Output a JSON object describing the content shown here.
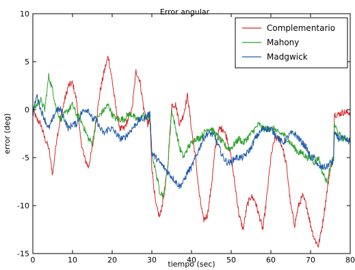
{
  "chart_data": {
    "type": "line",
    "title": "Error angular",
    "xlabel": "tiempo (sec)",
    "ylabel": "error (deg)",
    "xlim": [
      0,
      80
    ],
    "ylim": [
      -15,
      10
    ],
    "xticks": [
      "0",
      "10",
      "20",
      "30",
      "40",
      "50",
      "60",
      "70",
      "80"
    ],
    "yticks": [
      "10",
      "5",
      "0",
      "-5",
      "-10",
      "-15"
    ],
    "grid": false,
    "legend_position": "top-right",
    "series": [
      {
        "name": "Complementario",
        "color": "#d62728",
        "x": [
          0,
          1,
          2,
          3,
          4,
          5,
          6,
          7,
          8,
          9,
          10,
          11,
          12,
          13,
          14,
          15,
          16,
          17,
          18,
          19,
          20,
          21,
          22,
          23,
          24,
          25,
          26,
          27,
          28,
          29,
          29.5,
          30,
          31,
          32,
          33,
          34,
          35,
          36,
          37,
          38,
          39,
          40,
          41,
          42,
          43,
          44,
          45,
          46,
          47,
          48,
          49,
          50,
          51,
          52,
          53,
          54,
          55,
          56,
          57,
          58,
          59,
          60,
          61,
          62,
          63,
          64,
          65,
          66,
          67,
          68,
          69,
          70,
          71,
          72,
          73,
          74,
          75,
          75.8,
          76,
          77,
          78,
          79,
          80
        ],
        "y": [
          0,
          -1,
          -1.5,
          -3,
          -4,
          -6.8,
          -3,
          -1,
          1,
          2.5,
          2.8,
          1,
          -3,
          -5,
          -6,
          -4,
          -1,
          2,
          4,
          5.6,
          3,
          0,
          -2,
          -2,
          -1,
          0,
          4,
          3,
          0,
          -1.5,
          -1,
          -6,
          -10,
          -11.2,
          -9,
          -6,
          0.5,
          0.5,
          -1.5,
          -0.5,
          1.5,
          -2,
          -5,
          -9,
          -11.5,
          -11,
          -8,
          -4,
          -2,
          -2,
          -3,
          -5,
          -8,
          -11,
          -12.5,
          -10,
          -9,
          -9.5,
          -11,
          -12.5,
          -9,
          -5,
          -3,
          -3,
          -4,
          -6,
          -10,
          -12,
          -10,
          -9,
          -10,
          -12,
          -13.5,
          -14.2,
          -12,
          -9,
          -6,
          -5,
          -0.5,
          -0.5,
          -0.3,
          -0.3,
          -0.3
        ]
      },
      {
        "name": "Mahony",
        "color": "#2ca02c",
        "x": [
          0,
          1,
          2,
          3,
          4,
          5,
          6,
          7,
          8,
          9,
          10,
          11,
          12,
          13,
          14,
          15,
          16,
          17,
          18,
          19,
          20,
          21,
          22,
          23,
          24,
          25,
          26,
          27,
          28,
          29,
          29.5,
          30,
          31,
          32,
          33,
          34,
          35,
          36,
          37,
          38,
          39,
          40,
          41,
          42,
          43,
          44,
          45,
          46,
          47,
          48,
          49,
          50,
          51,
          52,
          53,
          54,
          55,
          56,
          57,
          58,
          59,
          60,
          61,
          62,
          63,
          64,
          65,
          66,
          67,
          68,
          69,
          70,
          71,
          72,
          73,
          74,
          75,
          75.8,
          76,
          77,
          78,
          79,
          80
        ],
        "y": [
          0,
          0.5,
          1,
          0,
          3.5,
          2,
          0,
          -1,
          -0.5,
          0,
          0.5,
          -0.5,
          -1,
          -2,
          -3,
          -3.5,
          -1,
          -0.5,
          0,
          0.5,
          -0.5,
          -1,
          -1,
          -1,
          -0.5,
          -0.5,
          -1,
          -1,
          -0.5,
          -1,
          -0.5,
          -4.5,
          -6.5,
          -8.5,
          -9,
          -6,
          0,
          -2,
          -4,
          -5,
          -4,
          -3.5,
          -3,
          -3,
          -2.5,
          -2,
          -2,
          -2.5,
          -3,
          -3.5,
          -4,
          -4,
          -3.5,
          -3,
          -3.5,
          -3,
          -2.5,
          -2,
          -1.5,
          -2,
          -2,
          -2,
          -2,
          -2.5,
          -2.5,
          -3,
          -3.5,
          -4,
          -4.5,
          -4.5,
          -5,
          -5,
          -5.5,
          -5,
          -6.5,
          -7.5,
          -6,
          -5,
          -1.5,
          -2.5,
          -3,
          -3,
          -3.2
        ]
      },
      {
        "name": "Madgwick",
        "color": "#1f5bab",
        "x": [
          0,
          1,
          2,
          3,
          4,
          5,
          6,
          7,
          8,
          9,
          10,
          11,
          12,
          13,
          14,
          15,
          16,
          17,
          18,
          19,
          20,
          21,
          22,
          23,
          24,
          25,
          26,
          27,
          28,
          29,
          29.5,
          30,
          31,
          32,
          33,
          34,
          35,
          36,
          37,
          38,
          39,
          40,
          41,
          42,
          43,
          44,
          45,
          46,
          47,
          48,
          49,
          50,
          51,
          52,
          53,
          54,
          55,
          56,
          57,
          58,
          59,
          60,
          61,
          62,
          63,
          64,
          65,
          66,
          67,
          68,
          69,
          70,
          71,
          72,
          73,
          74,
          75,
          75.8,
          76,
          77,
          78,
          79,
          80
        ],
        "y": [
          -0.5,
          1.5,
          0,
          -1,
          -2,
          -1,
          0,
          0,
          -1,
          -2,
          -1.5,
          -1.5,
          -0.5,
          0,
          0,
          -1,
          -1,
          -2,
          -2.5,
          -2,
          -2,
          -2.5,
          -3,
          -3,
          -2.5,
          -2,
          -1.5,
          -1,
          -1,
          -0.5,
          -0.5,
          -4.5,
          -5,
          -5.5,
          -6,
          -6.5,
          -7,
          -7.5,
          -8,
          -7.5,
          -6.5,
          -6,
          -5,
          -4,
          -3,
          -2.5,
          -2.5,
          -3,
          -4,
          -5,
          -5.5,
          -5.5,
          -5,
          -5,
          -5,
          -4.5,
          -4,
          -3,
          -2.5,
          -2,
          -2,
          -2,
          -2.5,
          -3,
          -3.5,
          -3,
          -2.5,
          -2.5,
          -3,
          -3.5,
          -4,
          -5,
          -5,
          -6,
          -6,
          -6,
          -5.5,
          -5.5,
          -2.5,
          -3,
          -3,
          -3.2,
          -3.3
        ]
      }
    ]
  }
}
